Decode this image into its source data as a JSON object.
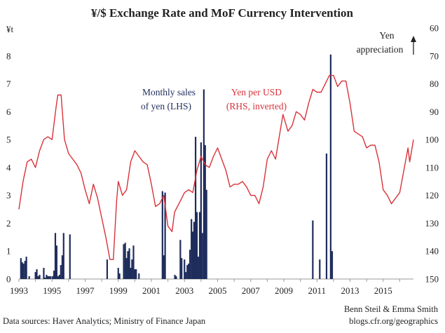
{
  "chart_data": {
    "type": "bar+line",
    "title": "¥/$ Exchange Rate and MoF Currency Intervention",
    "left_axis": {
      "label": "¥t",
      "ylim": [
        0,
        9
      ],
      "ticks": [
        "0",
        "1",
        "2",
        "3",
        "4",
        "5",
        "6",
        "7",
        "8"
      ]
    },
    "right_axis": {
      "ylim": [
        150,
        60
      ],
      "inverted": true,
      "ticks": [
        "60",
        "70",
        "80",
        "90",
        "100",
        "110",
        "120",
        "130",
        "140",
        "150"
      ]
    },
    "x_ticks": [
      "1993",
      "1995",
      "1997",
      "1999",
      "2001",
      "2003",
      "2005",
      "2007",
      "2009",
      "2011",
      "2013",
      "2015"
    ],
    "xlim": [
      1993.0,
      2016.83
    ],
    "colors": {
      "bars": "#1f2d5c",
      "line": "#d8323a",
      "axis": "#999999"
    },
    "annotations": {
      "bars_label_1": "Monthly sales",
      "bars_label_2": "of yen (LHS)",
      "line_label_1": "Yen per USD",
      "line_label_2": "(RHS, inverted)",
      "appreciation_1": "Yen",
      "appreciation_2": "appreciation"
    },
    "series": [
      {
        "name": "Monthly sales of yen (LHS)",
        "type": "bar",
        "axis": "left",
        "points": [
          [
            1993.12,
            0.75
          ],
          [
            1993.2,
            0.6
          ],
          [
            1993.28,
            0.55
          ],
          [
            1993.37,
            0.65
          ],
          [
            1993.45,
            0.8
          ],
          [
            1993.62,
            0.1
          ],
          [
            1994.0,
            0.25
          ],
          [
            1994.08,
            0.35
          ],
          [
            1994.17,
            0.1
          ],
          [
            1994.25,
            0.15
          ],
          [
            1994.5,
            0.4
          ],
          [
            1994.58,
            0.05
          ],
          [
            1994.67,
            0.15
          ],
          [
            1994.75,
            0.1
          ],
          [
            1994.83,
            0.1
          ],
          [
            1994.92,
            0.1
          ],
          [
            1995.04,
            0.1
          ],
          [
            1995.12,
            0.3
          ],
          [
            1995.2,
            1.65
          ],
          [
            1995.28,
            1.2
          ],
          [
            1995.37,
            0.1
          ],
          [
            1995.45,
            0.15
          ],
          [
            1995.53,
            0.5
          ],
          [
            1995.62,
            0.85
          ],
          [
            1995.7,
            1.65
          ],
          [
            1996.08,
            1.6
          ],
          [
            1998.33,
            0.7
          ],
          [
            1999.0,
            0.4
          ],
          [
            1999.08,
            0.2
          ],
          [
            1999.33,
            1.25
          ],
          [
            1999.42,
            1.3
          ],
          [
            1999.5,
            0.75
          ],
          [
            1999.58,
            1.0
          ],
          [
            1999.67,
            1.1
          ],
          [
            1999.75,
            0.4
          ],
          [
            1999.83,
            0.7
          ],
          [
            1999.92,
            1.2
          ],
          [
            2000.0,
            0.35
          ],
          [
            2000.08,
            0.35
          ],
          [
            2000.25,
            0.2
          ],
          [
            2001.67,
            3.15
          ],
          [
            2001.75,
            0.85
          ],
          [
            2001.83,
            3.1
          ],
          [
            2002.42,
            0.15
          ],
          [
            2002.5,
            0.1
          ],
          [
            2002.75,
            1.4
          ],
          [
            2002.83,
            0.75
          ],
          [
            2003.0,
            0.7
          ],
          [
            2003.08,
            0.25
          ],
          [
            2003.17,
            0.5
          ],
          [
            2003.25,
            0.55
          ],
          [
            2003.33,
            1.05
          ],
          [
            2003.42,
            2.15
          ],
          [
            2003.5,
            1.7
          ],
          [
            2003.58,
            2.05
          ],
          [
            2003.67,
            5.1
          ],
          [
            2003.75,
            2.4
          ],
          [
            2003.83,
            0.8
          ],
          [
            2003.92,
            2.4
          ],
          [
            2004.0,
            4.9
          ],
          [
            2004.08,
            1.65
          ],
          [
            2004.17,
            6.8
          ],
          [
            2004.25,
            4.8
          ],
          [
            2004.33,
            3.2
          ],
          [
            2010.75,
            2.1
          ],
          [
            2011.17,
            0.7
          ],
          [
            2011.58,
            4.5
          ],
          [
            2011.83,
            8.05
          ],
          [
            2011.92,
            1.0
          ]
        ]
      },
      {
        "name": "Yen per USD (RHS, inverted)",
        "type": "line",
        "axis": "right",
        "points": [
          [
            1993.0,
            125
          ],
          [
            1993.25,
            115
          ],
          [
            1993.5,
            108
          ],
          [
            1993.75,
            107
          ],
          [
            1994.0,
            110
          ],
          [
            1994.25,
            104
          ],
          [
            1994.5,
            100
          ],
          [
            1994.75,
            99
          ],
          [
            1995.0,
            100
          ],
          [
            1995.25,
            88
          ],
          [
            1995.35,
            84
          ],
          [
            1995.55,
            84
          ],
          [
            1995.75,
            100
          ],
          [
            1996.0,
            105
          ],
          [
            1996.25,
            107
          ],
          [
            1996.5,
            109
          ],
          [
            1996.75,
            112
          ],
          [
            1997.0,
            118
          ],
          [
            1997.25,
            123
          ],
          [
            1997.5,
            116
          ],
          [
            1997.75,
            121
          ],
          [
            1998.0,
            128
          ],
          [
            1998.25,
            135
          ],
          [
            1998.5,
            143
          ],
          [
            1998.7,
            143
          ],
          [
            1998.9,
            122
          ],
          [
            1999.0,
            115
          ],
          [
            1999.25,
            120
          ],
          [
            1999.5,
            118
          ],
          [
            1999.75,
            108
          ],
          [
            2000.0,
            104
          ],
          [
            2000.25,
            106
          ],
          [
            2000.5,
            108
          ],
          [
            2000.75,
            109
          ],
          [
            2001.0,
            116
          ],
          [
            2001.25,
            124
          ],
          [
            2001.5,
            123
          ],
          [
            2001.75,
            120
          ],
          [
            2002.0,
            131
          ],
          [
            2002.25,
            133
          ],
          [
            2002.4,
            126
          ],
          [
            2002.75,
            122
          ],
          [
            2003.0,
            119
          ],
          [
            2003.25,
            118
          ],
          [
            2003.5,
            119
          ],
          [
            2003.75,
            111
          ],
          [
            2004.0,
            106
          ],
          [
            2004.25,
            109
          ],
          [
            2004.5,
            110
          ],
          [
            2004.75,
            106
          ],
          [
            2005.0,
            103
          ],
          [
            2005.25,
            107
          ],
          [
            2005.5,
            111
          ],
          [
            2005.75,
            117
          ],
          [
            2006.0,
            116
          ],
          [
            2006.25,
            116
          ],
          [
            2006.5,
            115
          ],
          [
            2006.75,
            117
          ],
          [
            2007.0,
            120
          ],
          [
            2007.25,
            120
          ],
          [
            2007.5,
            123
          ],
          [
            2007.75,
            117
          ],
          [
            2008.0,
            107
          ],
          [
            2008.25,
            104
          ],
          [
            2008.5,
            107
          ],
          [
            2008.75,
            98
          ],
          [
            2008.95,
            91
          ],
          [
            2009.25,
            97
          ],
          [
            2009.5,
            95
          ],
          [
            2009.75,
            90
          ],
          [
            2010.0,
            91
          ],
          [
            2010.25,
            93
          ],
          [
            2010.5,
            87
          ],
          [
            2010.75,
            82
          ],
          [
            2011.0,
            83
          ],
          [
            2011.25,
            83
          ],
          [
            2011.5,
            80
          ],
          [
            2011.75,
            77
          ],
          [
            2012.0,
            77
          ],
          [
            2012.25,
            81
          ],
          [
            2012.5,
            79
          ],
          [
            2012.75,
            79
          ],
          [
            2013.0,
            87
          ],
          [
            2013.25,
            97
          ],
          [
            2013.5,
            98
          ],
          [
            2013.75,
            99
          ],
          [
            2014.0,
            103
          ],
          [
            2014.25,
            102
          ],
          [
            2014.5,
            102
          ],
          [
            2014.75,
            108
          ],
          [
            2015.0,
            118
          ],
          [
            2015.25,
            120
          ],
          [
            2015.5,
            123
          ],
          [
            2015.75,
            121
          ],
          [
            2016.0,
            119
          ],
          [
            2016.25,
            111
          ],
          [
            2016.5,
            103
          ],
          [
            2016.6,
            108
          ],
          [
            2016.83,
            100
          ]
        ]
      }
    ]
  },
  "footer": {
    "sources": "Data sources: Haver Analytics; Ministry of Finance Japan",
    "credit_1": "Benn Steil & Emma Smith",
    "credit_2": "blogs.cfr.org/geographics"
  }
}
